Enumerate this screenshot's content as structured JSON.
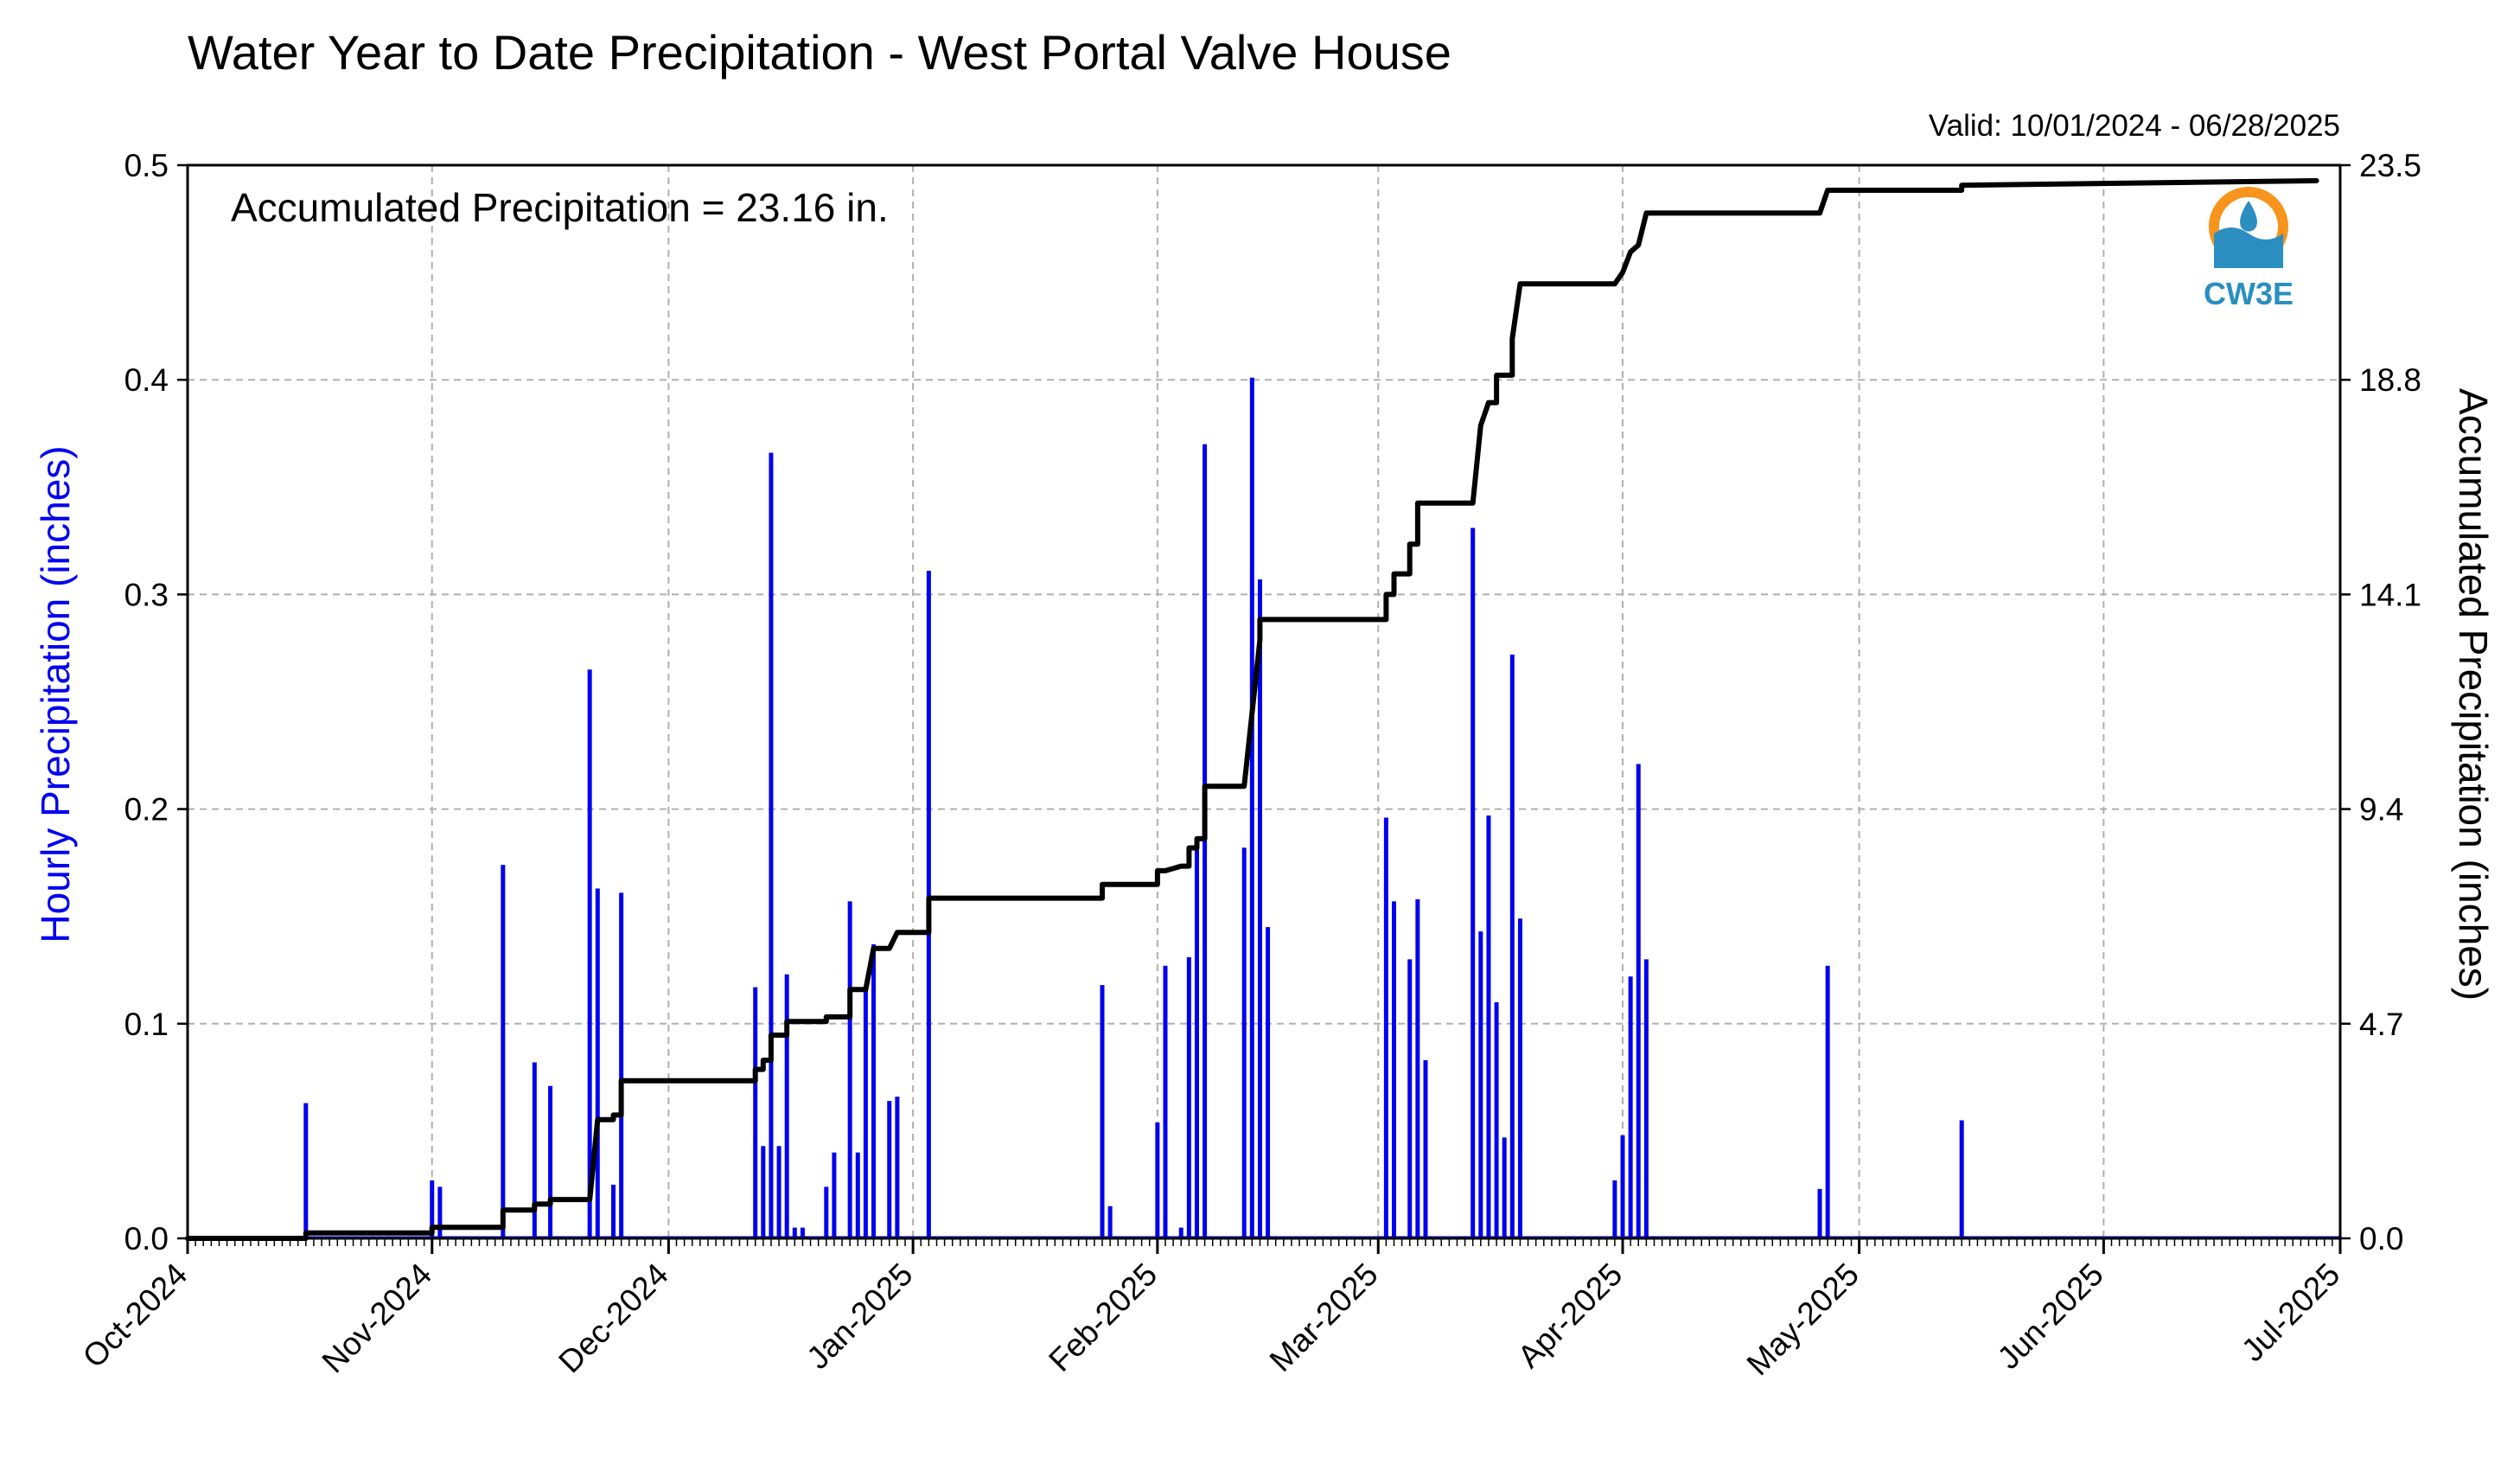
{
  "chart_data": {
    "type": "bar",
    "title": "Water Year to Date Precipitation - West Portal Valve House",
    "subtitle": "Valid: 10/01/2024 - 06/28/2025",
    "annotation": "Accumulated Precipitation = 23.16 in.",
    "logo_text": "CW3E",
    "ylabel_left": "Hourly Precipitation (inches)",
    "ylabel_right": "Accumulated Precipitation (inches)",
    "x_range": [
      "2024-10-01",
      "2025-07-01"
    ],
    "x_ticks": [
      {
        "date": "2024-10-01",
        "label": "Oct-2024"
      },
      {
        "date": "2024-11-01",
        "label": "Nov-2024"
      },
      {
        "date": "2024-12-01",
        "label": "Dec-2024"
      },
      {
        "date": "2025-01-01",
        "label": "Jan-2025"
      },
      {
        "date": "2025-02-01",
        "label": "Feb-2025"
      },
      {
        "date": "2025-03-01",
        "label": "Mar-2025"
      },
      {
        "date": "2025-04-01",
        "label": "Apr-2025"
      },
      {
        "date": "2025-05-01",
        "label": "May-2025"
      },
      {
        "date": "2025-06-01",
        "label": "Jun-2025"
      },
      {
        "date": "2025-07-01",
        "label": "Jul-2025"
      }
    ],
    "ylim_left": [
      0,
      0.5
    ],
    "yticks_left": [
      "0.0",
      "0.1",
      "0.2",
      "0.3",
      "0.4",
      "0.5"
    ],
    "ylim_right": [
      0,
      23.5
    ],
    "yticks_right": [
      "0.0",
      "4.7",
      "9.4",
      "14.1",
      "18.8",
      "23.5"
    ],
    "grid": true,
    "colors": {
      "hourly": "#0000ee",
      "accumulated": "#000000",
      "grid": "#b0b0b0",
      "logo_orange": "#f7941d",
      "logo_blue": "#2a8fc0"
    },
    "series": [
      {
        "name": "Hourly Precipitation (inches)",
        "type": "bar",
        "points": [
          [
            "2024-10-16",
            0.063
          ],
          [
            "2024-11-01",
            0.027
          ],
          [
            "2024-11-02",
            0.024
          ],
          [
            "2024-11-10",
            0.174
          ],
          [
            "2024-11-14",
            0.082
          ],
          [
            "2024-11-16",
            0.071
          ],
          [
            "2024-11-21",
            0.265
          ],
          [
            "2024-11-22",
            0.163
          ],
          [
            "2024-11-24",
            0.025
          ],
          [
            "2024-11-25",
            0.161
          ],
          [
            "2024-12-12",
            0.117
          ],
          [
            "2024-12-13",
            0.043
          ],
          [
            "2024-12-14",
            0.366
          ],
          [
            "2024-12-15",
            0.043
          ],
          [
            "2024-12-16",
            0.123
          ],
          [
            "2024-12-17",
            0.005
          ],
          [
            "2024-12-18",
            0.005
          ],
          [
            "2024-12-21",
            0.024
          ],
          [
            "2024-12-22",
            0.04
          ],
          [
            "2024-12-24",
            0.157
          ],
          [
            "2024-12-25",
            0.04
          ],
          [
            "2024-12-26",
            0.117
          ],
          [
            "2024-12-27",
            0.137
          ],
          [
            "2024-12-29",
            0.064
          ],
          [
            "2024-12-30",
            0.066
          ],
          [
            "2025-01-03",
            0.311
          ],
          [
            "2025-01-25",
            0.118
          ],
          [
            "2025-01-26",
            0.015
          ],
          [
            "2025-02-01",
            0.054
          ],
          [
            "2025-02-02",
            0.127
          ],
          [
            "2025-02-04",
            0.005
          ],
          [
            "2025-02-05",
            0.131
          ],
          [
            "2025-02-06",
            0.185
          ],
          [
            "2025-02-07",
            0.37
          ],
          [
            "2025-02-12",
            0.182
          ],
          [
            "2025-02-13",
            0.401
          ],
          [
            "2025-02-14",
            0.307
          ],
          [
            "2025-02-15",
            0.145
          ],
          [
            "2025-03-02",
            0.196
          ],
          [
            "2025-03-03",
            0.157
          ],
          [
            "2025-03-05",
            0.13
          ],
          [
            "2025-03-06",
            0.158
          ],
          [
            "2025-03-07",
            0.083
          ],
          [
            "2025-03-13",
            0.331
          ],
          [
            "2025-03-14",
            0.143
          ],
          [
            "2025-03-15",
            0.197
          ],
          [
            "2025-03-16",
            0.11
          ],
          [
            "2025-03-17",
            0.047
          ],
          [
            "2025-03-18",
            0.272
          ],
          [
            "2025-03-19",
            0.149
          ],
          [
            "2025-03-31",
            0.027
          ],
          [
            "2025-04-01",
            0.048
          ],
          [
            "2025-04-02",
            0.122
          ],
          [
            "2025-04-03",
            0.221
          ],
          [
            "2025-04-04",
            0.13
          ],
          [
            "2025-04-26",
            0.023
          ],
          [
            "2025-04-27",
            0.127
          ],
          [
            "2025-05-14",
            0.055
          ]
        ]
      },
      {
        "name": "Accumulated Precipitation (inches)",
        "type": "line",
        "points": [
          [
            "2024-10-01",
            0.0
          ],
          [
            "2024-10-16",
            0.0
          ],
          [
            "2024-10-16",
            0.12
          ],
          [
            "2024-11-01",
            0.12
          ],
          [
            "2024-11-01",
            0.24
          ],
          [
            "2024-11-02",
            0.24
          ],
          [
            "2024-11-02",
            0.24
          ],
          [
            "2024-11-10",
            0.24
          ],
          [
            "2024-11-10",
            0.62
          ],
          [
            "2024-11-14",
            0.62
          ],
          [
            "2024-11-14",
            0.75
          ],
          [
            "2024-11-16",
            0.75
          ],
          [
            "2024-11-16",
            0.85
          ],
          [
            "2024-11-21",
            0.85
          ],
          [
            "2024-11-22",
            2.6
          ],
          [
            "2024-11-24",
            2.6
          ],
          [
            "2024-11-24",
            2.7
          ],
          [
            "2024-11-25",
            2.7
          ],
          [
            "2024-11-25",
            3.45
          ],
          [
            "2024-12-12",
            3.45
          ],
          [
            "2024-12-12",
            3.7
          ],
          [
            "2024-12-13",
            3.7
          ],
          [
            "2024-12-13",
            3.9
          ],
          [
            "2024-12-14",
            3.9
          ],
          [
            "2024-12-14",
            4.45
          ],
          [
            "2024-12-16",
            4.45
          ],
          [
            "2024-12-16",
            4.75
          ],
          [
            "2024-12-21",
            4.75
          ],
          [
            "2024-12-21",
            4.85
          ],
          [
            "2024-12-24",
            4.85
          ],
          [
            "2024-12-24",
            5.45
          ],
          [
            "2024-12-26",
            5.45
          ],
          [
            "2024-12-27",
            6.35
          ],
          [
            "2024-12-29",
            6.35
          ],
          [
            "2024-12-30",
            6.7
          ],
          [
            "2025-01-03",
            6.7
          ],
          [
            "2025-01-03",
            7.45
          ],
          [
            "2025-01-25",
            7.45
          ],
          [
            "2025-01-25",
            7.75
          ],
          [
            "2025-02-01",
            7.75
          ],
          [
            "2025-02-01",
            8.05
          ],
          [
            "2025-02-02",
            8.05
          ],
          [
            "2025-02-04",
            8.15
          ],
          [
            "2025-02-05",
            8.15
          ],
          [
            "2025-02-05",
            8.55
          ],
          [
            "2025-02-06",
            8.55
          ],
          [
            "2025-02-06",
            8.75
          ],
          [
            "2025-02-07",
            8.75
          ],
          [
            "2025-02-07",
            9.9
          ],
          [
            "2025-02-12",
            9.9
          ],
          [
            "2025-02-13",
            11.5
          ],
          [
            "2025-02-14",
            13.1
          ],
          [
            "2025-02-14",
            13.55
          ],
          [
            "2025-03-02",
            13.55
          ],
          [
            "2025-03-02",
            14.1
          ],
          [
            "2025-03-03",
            14.1
          ],
          [
            "2025-03-03",
            14.55
          ],
          [
            "2025-03-05",
            14.55
          ],
          [
            "2025-03-05",
            15.2
          ],
          [
            "2025-03-06",
            15.2
          ],
          [
            "2025-03-06",
            16.1
          ],
          [
            "2025-03-13",
            16.1
          ],
          [
            "2025-03-14",
            17.8
          ],
          [
            "2025-03-15",
            18.3
          ],
          [
            "2025-03-16",
            18.3
          ],
          [
            "2025-03-16",
            18.9
          ],
          [
            "2025-03-18",
            18.9
          ],
          [
            "2025-03-18",
            19.7
          ],
          [
            "2025-03-19",
            20.9
          ],
          [
            "2025-03-31",
            20.9
          ],
          [
            "2025-04-01",
            21.15
          ],
          [
            "2025-04-02",
            21.6
          ],
          [
            "2025-04-03",
            21.75
          ],
          [
            "2025-04-04",
            22.45
          ],
          [
            "2025-04-26",
            22.45
          ],
          [
            "2025-04-27",
            22.95
          ],
          [
            "2025-05-14",
            22.95
          ],
          [
            "2025-05-14",
            23.06
          ],
          [
            "2025-06-28",
            23.16
          ]
        ]
      }
    ]
  }
}
